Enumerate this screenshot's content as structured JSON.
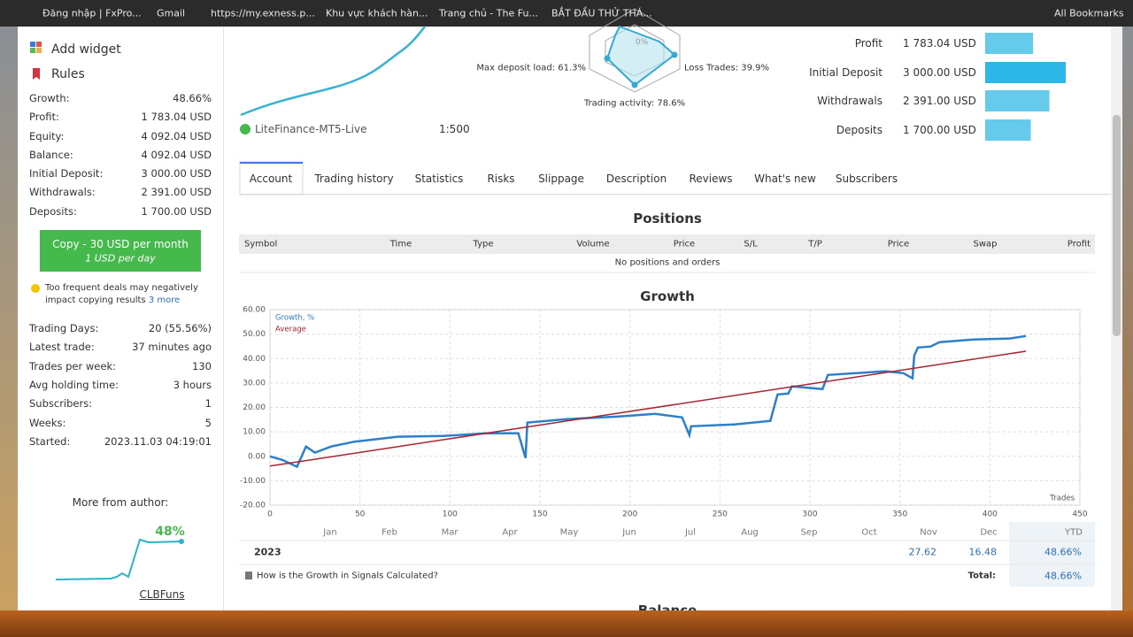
{
  "bookmarks": [
    "Đăng nhập | FxPro...",
    "Gmail",
    "https://my.exness.p...",
    "Khu vực khách hàn...",
    "Trang chủ - The Fu...",
    "BẮT ĐẦU THỬ THÁ...",
    "All Bookmarks"
  ],
  "sidebar": {
    "menu": [
      "Add widget",
      "Rules"
    ],
    "stats": [
      {
        "label": "Growth:",
        "value": "48.66%"
      },
      {
        "label": "Profit:",
        "value": "1 783.04 USD"
      },
      {
        "label": "Equity:",
        "value": "4 092.04 USD"
      },
      {
        "label": "Balance:",
        "value": "4 092.04 USD"
      },
      {
        "label": "Initial Deposit:",
        "value": "3 000.00 USD"
      },
      {
        "label": "Withdrawals:",
        "value": "2 391.00 USD"
      },
      {
        "label": "Deposits:",
        "value": "1 700.00 USD"
      }
    ],
    "copy_button": {
      "title": "Copy - 30 USD per month",
      "subtitle": "1 USD per day"
    },
    "warning": {
      "text": "Too frequent deals may negatively impact copying results",
      "link": "3 more"
    },
    "stats2": [
      {
        "label": "Trading Days:",
        "value": "20 (55.56%)"
      },
      {
        "label": "Latest trade:",
        "value": "37 minutes ago"
      },
      {
        "label": "Trades per week:",
        "value": "130"
      },
      {
        "label": "Avg holding time:",
        "value": "3 hours"
      },
      {
        "label": "Subscribers:",
        "value": "1"
      },
      {
        "label": "Weeks:",
        "value": "5"
      },
      {
        "label": "Started:",
        "value": "2023.11.03 04:19:01"
      }
    ],
    "more_from_author": "More from author:",
    "author_growth": "48%",
    "author_name": "CLBFuns"
  },
  "header": {
    "server": "LiteFinance-MT5-Live",
    "leverage": "1:500",
    "radar": {
      "center": "0%",
      "max_deposit_load": "Max deposit load: 61.3%",
      "loss_trades": "Loss Trades: 39.9%",
      "trading_activity": "Trading activity: 78.6%"
    },
    "bars": [
      {
        "label": "Profit",
        "value": 1783.04,
        "value_label": "1 783.04 USD"
      },
      {
        "label": "Initial Deposit",
        "value": 3000.0,
        "value_label": "3 000.00 USD"
      },
      {
        "label": "Withdrawals",
        "value": 2391.0,
        "value_label": "2 391.00 USD"
      },
      {
        "label": "Deposits",
        "value": 1700.0,
        "value_label": "1 700.00 USD"
      }
    ]
  },
  "tabs": [
    "Account",
    "Trading history",
    "Statistics",
    "Risks",
    "Slippage",
    "Description",
    "Reviews",
    "What's new",
    "Subscribers"
  ],
  "positions": {
    "title": "Positions",
    "columns": [
      "Symbol",
      "Time",
      "Type",
      "Volume",
      "Price",
      "S/L",
      "T/P",
      "Price",
      "Swap",
      "Profit"
    ],
    "empty": "No positions and orders"
  },
  "chart_data": {
    "type": "line",
    "title": "Growth",
    "x_axis_label": "Trades",
    "xlim": [
      0,
      450
    ],
    "xticks": [
      0,
      50,
      100,
      150,
      200,
      250,
      300,
      350,
      400,
      450
    ],
    "ylim": [
      -20,
      60
    ],
    "yticks": [
      {
        "value": -20,
        "label": "-20.00"
      },
      {
        "value": -10,
        "label": "-10.00"
      },
      {
        "value": 0,
        "label": "0.00"
      },
      {
        "value": 10,
        "label": "10.00"
      },
      {
        "value": 20,
        "label": "20.00"
      },
      {
        "value": 30,
        "label": "30.00"
      },
      {
        "value": 40,
        "label": "40.00"
      },
      {
        "value": 50,
        "label": "50.00"
      },
      {
        "value": 60,
        "label": "60.00"
      }
    ],
    "grid": true,
    "series": [
      {
        "name": "Growth, %",
        "color": "#2e7fc9",
        "x": [
          0,
          7,
          15,
          20,
          25,
          34,
          47,
          71,
          96,
          120,
          138,
          142,
          143,
          165,
          194,
          214,
          229,
          233,
          234,
          258,
          278,
          282,
          288,
          290,
          307,
          310,
          342,
          352,
          357,
          358,
          360,
          367,
          372,
          391,
          411,
          420
        ],
        "values": [
          0,
          -1.5,
          -4.3,
          4,
          1.5,
          4,
          6,
          8,
          8.3,
          9.4,
          9.4,
          -0.7,
          13.8,
          15.2,
          16.3,
          17.4,
          15.9,
          8.7,
          12.3,
          13,
          14.5,
          25.3,
          25.7,
          28.6,
          27.5,
          33.3,
          34.8,
          34,
          31.9,
          41.3,
          44.5,
          44.9,
          46.7,
          47.8,
          48.2,
          49.2
        ]
      },
      {
        "name": "Average",
        "color": "#a5262f",
        "x": [
          0,
          420
        ],
        "values": [
          -4,
          43
        ]
      }
    ]
  },
  "yearly": {
    "months": [
      "Jan",
      "Feb",
      "Mar",
      "Apr",
      "May",
      "Jun",
      "Jul",
      "Aug",
      "Sep",
      "Oct",
      "Nov",
      "Dec",
      "YTD"
    ],
    "year": "2023",
    "nov": "27.62",
    "dec": "16.48",
    "ytd": "48.66%",
    "help": "How is the Growth in Signals Calculated?",
    "total_label": "Total:",
    "total": "48.66%"
  },
  "next_section": "Balance"
}
